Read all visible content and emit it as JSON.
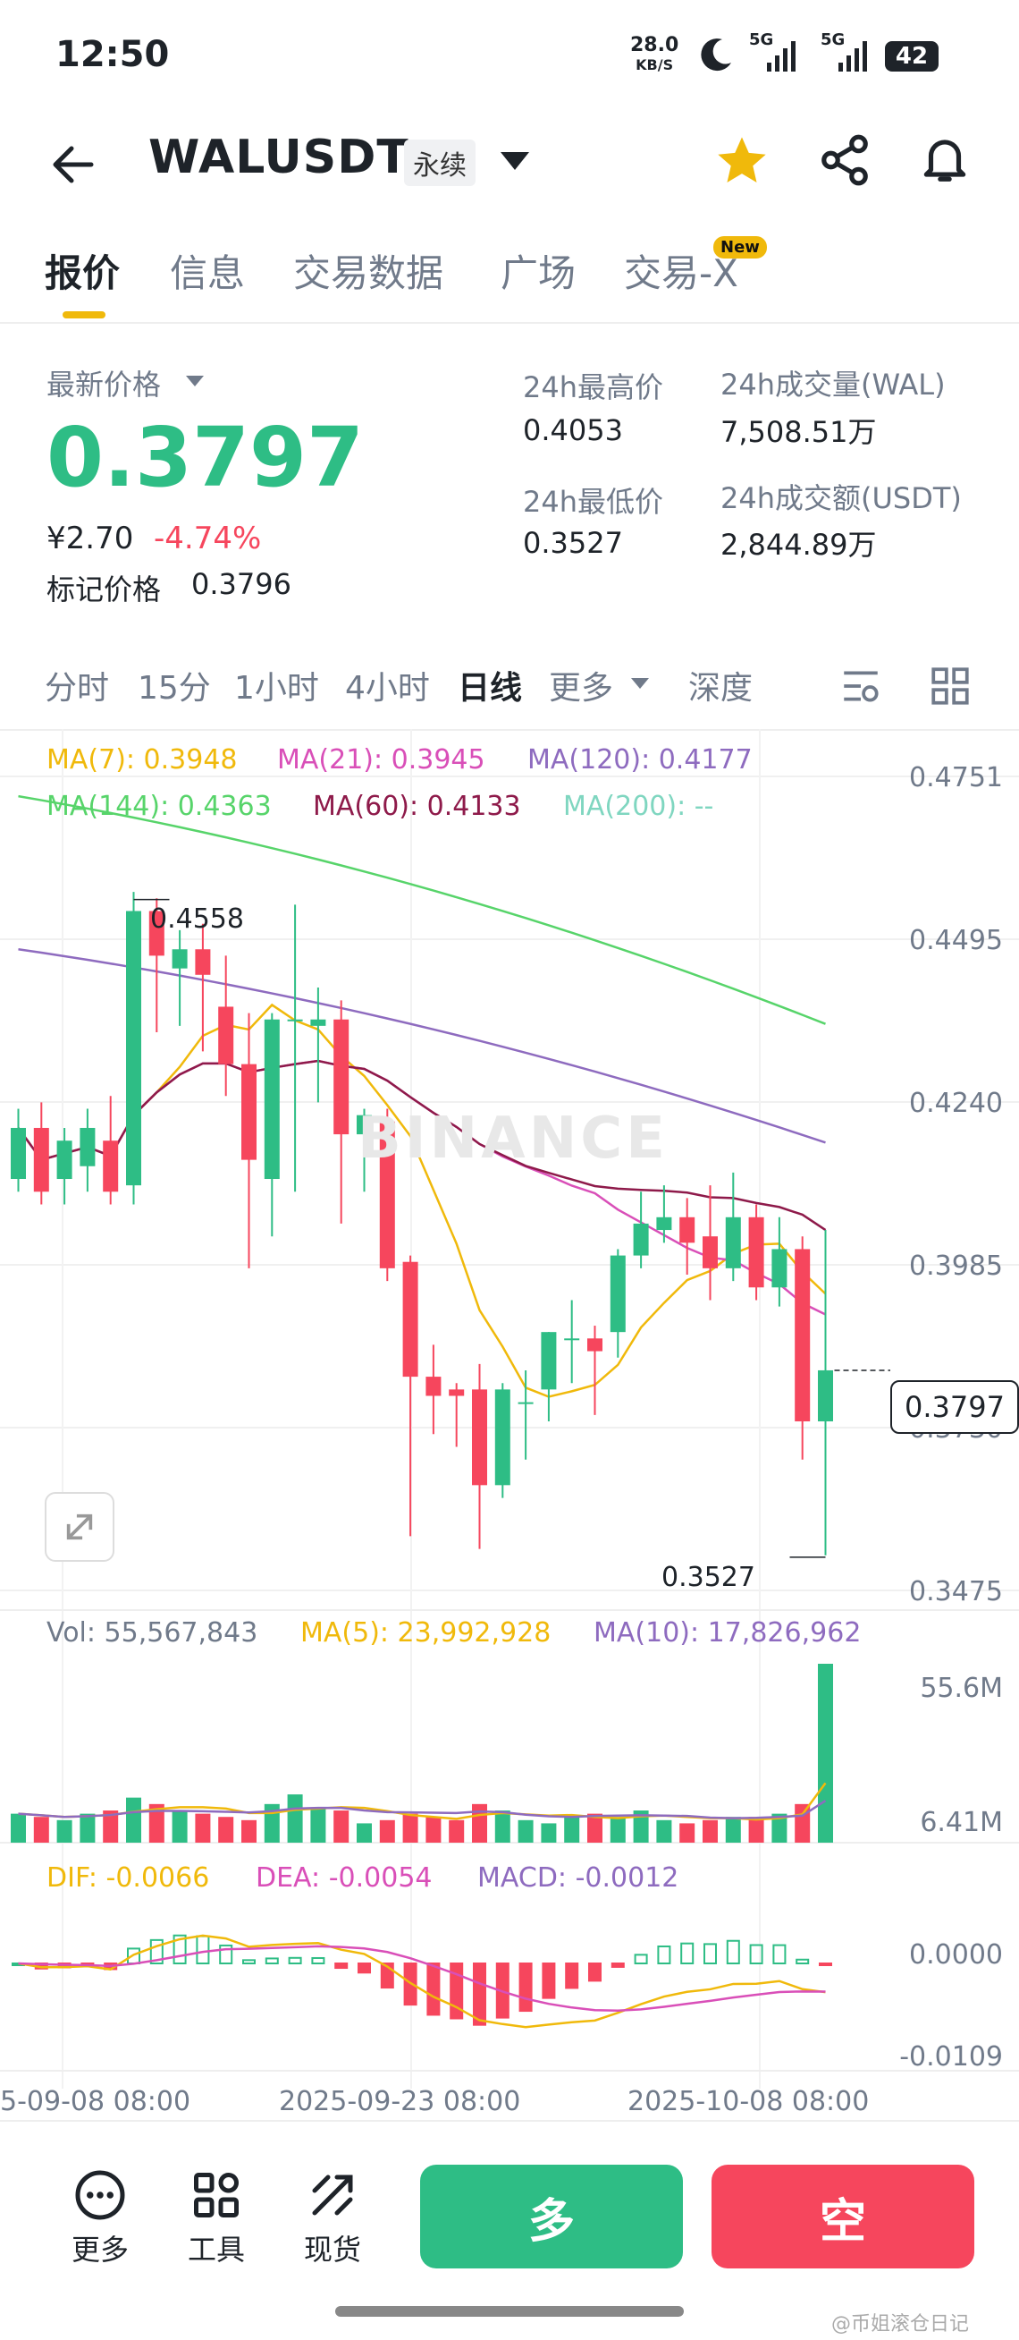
{
  "status_bar": {
    "time": "12:50",
    "net_speed_value": "28.0",
    "net_speed_unit": "KB/S",
    "network_1": "5G",
    "network_2": "5G",
    "battery": "42"
  },
  "header": {
    "symbol": "WALUSDT",
    "contract_type": "永续",
    "icons": [
      "back-arrow-icon",
      "dropdown-icon",
      "star-icon",
      "share-icon",
      "bell-icon"
    ],
    "star_color": "#f0b90b"
  },
  "tabs": [
    {
      "label": "报价",
      "active": true
    },
    {
      "label": "信息",
      "active": false
    },
    {
      "label": "交易数据",
      "active": false
    },
    {
      "label": "广场",
      "active": false
    },
    {
      "label": "交易-X",
      "active": false,
      "badge": "New"
    }
  ],
  "price": {
    "latest_label": "最新价格",
    "latest_value": "0.3797",
    "cny_value": "¥2.70",
    "change_pct": "-4.74%",
    "mark_label": "标记价格",
    "mark_value": "0.3796",
    "high_label": "24h最高价",
    "high_value": "0.4053",
    "low_label": "24h最低价",
    "low_value": "0.3527",
    "volume_label": "24h成交量(WAL)",
    "volume_value": "7,508.51万",
    "turnover_label": "24h成交额(USDT)",
    "turnover_value": "2,844.89万",
    "up_color": "#2ebd85",
    "down_color": "#f6465d"
  },
  "chart_toolbar": {
    "intervals": [
      {
        "label": "分时",
        "active": false
      },
      {
        "label": "15分",
        "active": false
      },
      {
        "label": "1小时",
        "active": false
      },
      {
        "label": "4小时",
        "active": false
      },
      {
        "label": "日线",
        "active": true
      },
      {
        "label": "更多",
        "active": false
      },
      {
        "label": "深度",
        "active": false
      }
    ],
    "icons": [
      "indicator-settings-icon",
      "grid-layout-icon"
    ]
  },
  "main_chart": {
    "ma_line1": [
      {
        "text": "MA(7): 0.3948",
        "color": "#f0b90b"
      },
      {
        "text": "MA(21): 0.3945",
        "color": "#d94fb8"
      },
      {
        "text": "MA(120): 0.4177",
        "color": "#8e6bbf"
      }
    ],
    "ma_line2": [
      {
        "text": "MA(144): 0.4363",
        "color": "#57d46a"
      },
      {
        "text": "MA(60): 0.4133",
        "color": "#8e1a4a"
      },
      {
        "text": "MA(200): --",
        "color": "#7fd6c0"
      }
    ],
    "y_ticks": [
      "0.4751",
      "0.4495",
      "0.4240",
      "0.3985",
      "0.3730",
      "0.3475"
    ],
    "high_marker": "0.4558",
    "low_marker": "0.3527",
    "current_price_tag": "0.3797",
    "watermark": "BINANCE"
  },
  "volume_chart": {
    "vol_text": "Vol: 55,567,843",
    "ma5_text": "MA(5): 23,992,928",
    "ma10_text": "MA(10): 17,826,962",
    "y_ticks": [
      "55.6M",
      "6.41M"
    ]
  },
  "macd_chart": {
    "dif_text": "DIF: -0.0066",
    "dea_text": "DEA: -0.0054",
    "macd_text": "MACD: -0.0012",
    "y_ticks": [
      "0.0000",
      "-0.0109"
    ]
  },
  "x_axis": [
    "5-09-08 08:00",
    "2025-09-23 08:00",
    "2025-10-08 08:00"
  ],
  "chart_data": {
    "type": "candlestick",
    "ylim": [
      0.3475,
      0.4751
    ],
    "candles": [
      {
        "o": 0.412,
        "h": 0.423,
        "l": 0.41,
        "c": 0.42
      },
      {
        "o": 0.42,
        "h": 0.424,
        "l": 0.408,
        "c": 0.41
      },
      {
        "o": 0.412,
        "h": 0.42,
        "l": 0.408,
        "c": 0.418
      },
      {
        "o": 0.414,
        "h": 0.423,
        "l": 0.41,
        "c": 0.42
      },
      {
        "o": 0.418,
        "h": 0.425,
        "l": 0.408,
        "c": 0.41
      },
      {
        "o": 0.411,
        "h": 0.457,
        "l": 0.408,
        "c": 0.454
      },
      {
        "o": 0.454,
        "h": 0.456,
        "l": 0.435,
        "c": 0.447
      },
      {
        "o": 0.445,
        "h": 0.451,
        "l": 0.436,
        "c": 0.448
      },
      {
        "o": 0.448,
        "h": 0.452,
        "l": 0.432,
        "c": 0.444
      },
      {
        "o": 0.439,
        "h": 0.447,
        "l": 0.425,
        "c": 0.43
      },
      {
        "o": 0.43,
        "h": 0.438,
        "l": 0.398,
        "c": 0.415
      },
      {
        "o": 0.412,
        "h": 0.438,
        "l": 0.403,
        "c": 0.437
      },
      {
        "o": 0.437,
        "h": 0.455,
        "l": 0.41,
        "c": 0.437
      },
      {
        "o": 0.436,
        "h": 0.442,
        "l": 0.424,
        "c": 0.437
      },
      {
        "o": 0.437,
        "h": 0.44,
        "l": 0.405,
        "c": 0.419
      },
      {
        "o": 0.419,
        "h": 0.423,
        "l": 0.41,
        "c": 0.422
      },
      {
        "o": 0.421,
        "h": 0.423,
        "l": 0.396,
        "c": 0.398
      },
      {
        "o": 0.399,
        "h": 0.4,
        "l": 0.356,
        "c": 0.381
      },
      {
        "o": 0.381,
        "h": 0.386,
        "l": 0.372,
        "c": 0.378
      },
      {
        "o": 0.379,
        "h": 0.38,
        "l": 0.37,
        "c": 0.378
      },
      {
        "o": 0.379,
        "h": 0.383,
        "l": 0.354,
        "c": 0.364
      },
      {
        "o": 0.364,
        "h": 0.38,
        "l": 0.362,
        "c": 0.379
      },
      {
        "o": 0.377,
        "h": 0.382,
        "l": 0.368,
        "c": 0.377
      },
      {
        "o": 0.379,
        "h": 0.388,
        "l": 0.374,
        "c": 0.388
      },
      {
        "o": 0.387,
        "h": 0.393,
        "l": 0.38,
        "c": 0.387
      },
      {
        "o": 0.387,
        "h": 0.389,
        "l": 0.375,
        "c": 0.385
      },
      {
        "o": 0.388,
        "h": 0.401,
        "l": 0.384,
        "c": 0.4
      },
      {
        "o": 0.4,
        "h": 0.41,
        "l": 0.398,
        "c": 0.405
      },
      {
        "o": 0.404,
        "h": 0.411,
        "l": 0.402,
        "c": 0.406
      },
      {
        "o": 0.406,
        "h": 0.409,
        "l": 0.397,
        "c": 0.402
      },
      {
        "o": 0.403,
        "h": 0.411,
        "l": 0.393,
        "c": 0.398
      },
      {
        "o": 0.398,
        "h": 0.413,
        "l": 0.396,
        "c": 0.406
      },
      {
        "o": 0.406,
        "h": 0.408,
        "l": 0.393,
        "c": 0.395
      },
      {
        "o": 0.395,
        "h": 0.406,
        "l": 0.392,
        "c": 0.401
      },
      {
        "o": 0.401,
        "h": 0.403,
        "l": 0.368,
        "c": 0.374
      },
      {
        "o": 0.374,
        "h": 0.404,
        "l": 0.353,
        "c": 0.382
      }
    ],
    "volume": [
      9,
      8,
      7,
      9,
      10,
      14,
      12,
      10,
      9,
      8,
      7,
      12,
      15,
      11,
      10,
      6,
      7,
      9,
      8,
      7,
      12,
      10,
      7,
      6,
      8,
      9,
      8,
      10,
      7,
      6,
      7,
      8,
      8,
      9,
      12,
      55.6
    ]
  },
  "bottom_bar": {
    "more_label": "更多",
    "tools_label": "工具",
    "spot_label": "现货",
    "long_label": "多",
    "short_label": "空",
    "long_color": "#2ebd85",
    "short_color": "#f6465d"
  },
  "watermark_text": "@币姐滚仓日记"
}
